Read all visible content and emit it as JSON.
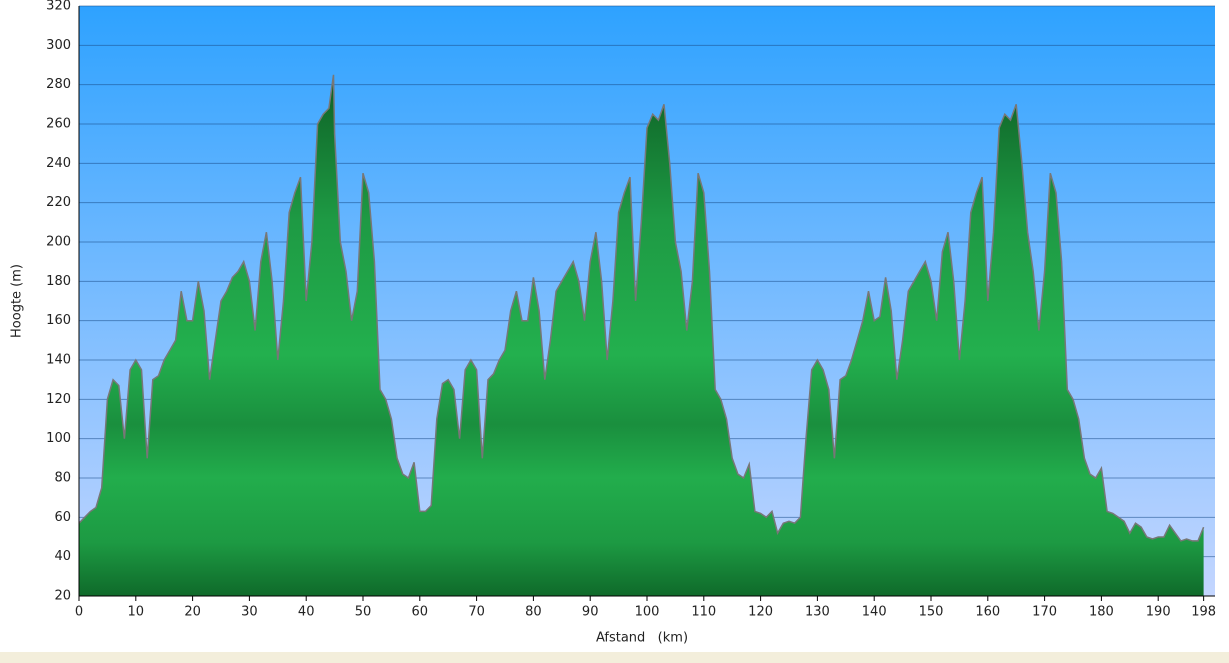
{
  "chart_data": {
    "type": "area",
    "x_label": "Afstand   (km)",
    "y_label": "Hoogte (m)",
    "color": "#1fa84a",
    "line_color": "#777777",
    "grid": true,
    "xlim": [
      0,
      200
    ],
    "xticks": [
      0,
      10,
      20,
      30,
      40,
      50,
      60,
      70,
      80,
      90,
      100,
      110,
      120,
      130,
      140,
      150,
      160,
      170,
      180,
      190,
      198
    ],
    "ylim": [
      20,
      320
    ],
    "yticks": [
      20,
      40,
      60,
      80,
      100,
      120,
      140,
      160,
      180,
      200,
      220,
      240,
      260,
      280,
      300,
      320
    ],
    "x": [
      0,
      1,
      2,
      3,
      4,
      5,
      6,
      7,
      8,
      9,
      10,
      11,
      12,
      13,
      14,
      15,
      16,
      17,
      18,
      19,
      20,
      21,
      22,
      23,
      24,
      25,
      26,
      27,
      28,
      29,
      30,
      31,
      32,
      33,
      34,
      35,
      36,
      37,
      38,
      39,
      40,
      41,
      42,
      43,
      44,
      44.8,
      45,
      46,
      47,
      48,
      49,
      50,
      51,
      52,
      53,
      54,
      55,
      56,
      57,
      58,
      59,
      60,
      61,
      62,
      63,
      64,
      65,
      66,
      67,
      68,
      69,
      70,
      71,
      72,
      73,
      74,
      75,
      76,
      77,
      78,
      79,
      80,
      81,
      82,
      83,
      84,
      85,
      86,
      87,
      88,
      89,
      90,
      91,
      92,
      93,
      94,
      95,
      96,
      97,
      98,
      99,
      100,
      101,
      102,
      103,
      104,
      105,
      106,
      107,
      108,
      109,
      110,
      111,
      112,
      113,
      114,
      115,
      116,
      117,
      118,
      119,
      120,
      121,
      122,
      123,
      124,
      125,
      126,
      127,
      128,
      129,
      130,
      131,
      132,
      133,
      134,
      135,
      136,
      137,
      138,
      139,
      140,
      141,
      142,
      143,
      144,
      145,
      146,
      147,
      148,
      149,
      150,
      151,
      152,
      153,
      154,
      155,
      156,
      157,
      158,
      159,
      160,
      161,
      162,
      163,
      164,
      165,
      166,
      167,
      168,
      169,
      170,
      171,
      172,
      173,
      174,
      175,
      176,
      177,
      178,
      179,
      180,
      181,
      182,
      183,
      184,
      185,
      186,
      187,
      188,
      189,
      190,
      191,
      192,
      193,
      194,
      195,
      196,
      197,
      198
    ],
    "values": [
      57,
      60,
      63,
      65,
      75,
      120,
      130,
      127,
      100,
      135,
      140,
      135,
      90,
      130,
      132,
      140,
      145,
      150,
      175,
      160,
      160,
      180,
      165,
      130,
      150,
      170,
      175,
      182,
      185,
      190,
      180,
      155,
      190,
      205,
      180,
      140,
      170,
      215,
      225,
      233,
      170,
      200,
      260,
      265,
      268,
      285,
      255,
      200,
      185,
      160,
      175,
      235,
      225,
      190,
      125,
      120,
      110,
      90,
      82,
      80,
      88,
      63,
      63,
      66,
      110,
      128,
      130,
      125,
      100,
      135,
      140,
      135,
      90,
      130,
      133,
      140,
      145,
      165,
      175,
      160,
      160,
      182,
      165,
      130,
      150,
      175,
      180,
      185,
      190,
      180,
      160,
      190,
      205,
      180,
      140,
      170,
      215,
      225,
      233,
      170,
      210,
      258,
      265,
      262,
      270,
      240,
      200,
      185,
      155,
      180,
      235,
      225,
      185,
      125,
      120,
      110,
      90,
      82,
      80,
      87,
      63,
      62,
      60,
      63,
      52,
      57,
      58,
      57,
      60,
      100,
      135,
      140,
      135,
      125,
      90,
      130,
      132,
      140,
      150,
      160,
      175,
      160,
      162,
      182,
      165,
      130,
      150,
      175,
      180,
      185,
      190,
      180,
      160,
      195,
      205,
      180,
      140,
      170,
      215,
      225,
      233,
      170,
      205,
      258,
      265,
      262,
      270,
      240,
      205,
      185,
      155,
      185,
      235,
      225,
      190,
      125,
      120,
      110,
      90,
      82,
      80,
      85,
      63,
      62,
      60,
      58,
      52,
      57,
      55,
      50,
      49,
      50,
      50,
      56,
      52,
      48,
      49,
      48,
      48,
      55
    ]
  }
}
